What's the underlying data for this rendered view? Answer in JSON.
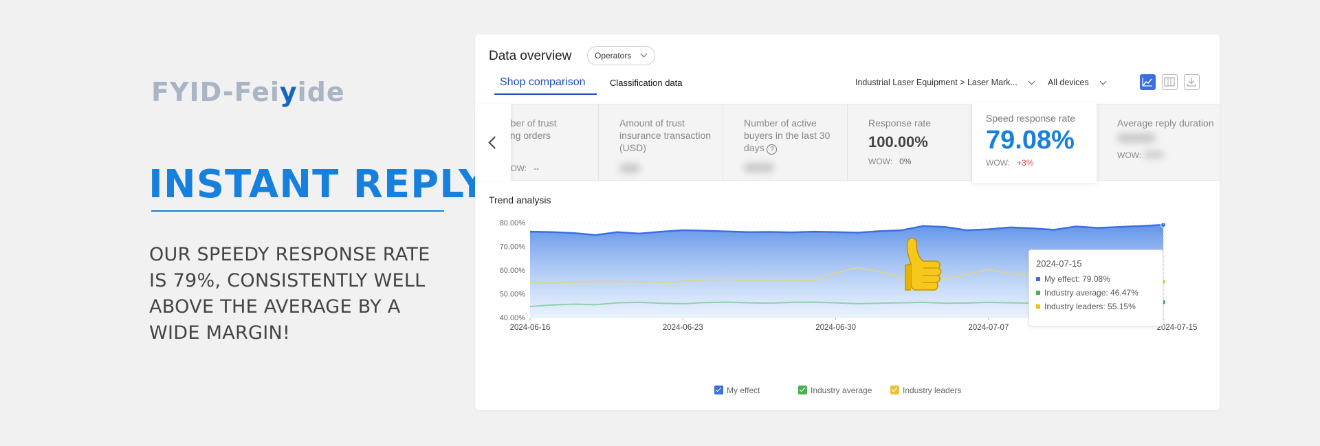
{
  "promo": {
    "logo_a": "FYID-Fei",
    "logo_b": "y",
    "logo_c": "ide",
    "headline": "INSTANT REPLY",
    "tagline": "OUR SPEEDY RESPONSE RATE IS 79%,  CONSISTENTLY WELL ABOVE THE AVERAGE BY A WIDE MARGIN!"
  },
  "dashboard": {
    "title": "Data overview",
    "operator_select": "Operators",
    "tabs": [
      {
        "label": "Shop comparison",
        "active": true
      },
      {
        "label": "Classification data",
        "active": false
      }
    ],
    "category_filter": "Industrial Laser Equipment > Laser Mark...",
    "device_filter": "All devices",
    "toolbar_icons": [
      "line-chart-icon",
      "columns-icon",
      "download-icon"
    ],
    "metrics": [
      {
        "label": "mber of trust\nding orders",
        "value": "",
        "wow_label": "WOW:",
        "wow": "--"
      },
      {
        "label": "Amount of trust insurance transaction (USD)",
        "value": "",
        "wow_label": "",
        "wow": ""
      },
      {
        "label": "Number of active buyers in the last 30 days",
        "value": "",
        "wow_label": "",
        "wow": ""
      },
      {
        "label": "Response rate",
        "value": "100.00%",
        "wow_label": "WOW:",
        "wow": "0%"
      },
      {
        "label": "Speed response rate",
        "value": "79.08%",
        "wow_label": "WOW:",
        "wow": "+3%"
      },
      {
        "label": "Average reply duration",
        "value": "",
        "wow_label": "WOW:",
        "wow": ""
      }
    ],
    "trend_title": "Trend analysis",
    "tooltip": {
      "date": "2024-07-15",
      "rows": [
        {
          "label": "My effect: 79.08%",
          "color": "#3b6fe0"
        },
        {
          "label": "Industry average: 46.47%",
          "color": "#4caf50"
        },
        {
          "label": "Industry leaders: 55.15%",
          "color": "#f2c200"
        }
      ]
    },
    "legend": [
      {
        "label": "My effect",
        "color": "#3b6fe0"
      },
      {
        "label": "Industry average",
        "color": "#4caf50"
      },
      {
        "label": "Industry leaders",
        "color": "#e8c23a"
      }
    ]
  },
  "chart_data": {
    "type": "area",
    "x": [
      "2024-06-16",
      "2024-06-17",
      "2024-06-18",
      "2024-06-19",
      "2024-06-20",
      "2024-06-21",
      "2024-06-22",
      "2024-06-23",
      "2024-06-24",
      "2024-06-25",
      "2024-06-26",
      "2024-06-27",
      "2024-06-28",
      "2024-06-29",
      "2024-06-30",
      "2024-07-01",
      "2024-07-02",
      "2024-07-03",
      "2024-07-04",
      "2024-07-05",
      "2024-07-06",
      "2024-07-07",
      "2024-07-08",
      "2024-07-09",
      "2024-07-10",
      "2024-07-11",
      "2024-07-12",
      "2024-07-13",
      "2024-07-14",
      "2024-07-15"
    ],
    "x_ticks": [
      "2024-06-16",
      "2024-06-23",
      "2024-06-30",
      "2024-07-07",
      "2024-07-15"
    ],
    "y_ticks": [
      "80.00%",
      "70.00%",
      "60.00%",
      "50.00%",
      "40.00%"
    ],
    "ylim": [
      40,
      80
    ],
    "series": [
      {
        "name": "My effect",
        "color": "#3b6fe0",
        "values": [
          76.2,
          76.0,
          75.6,
          74.8,
          76.0,
          75.4,
          76.2,
          76.8,
          76.6,
          76.3,
          76.0,
          76.1,
          75.9,
          76.2,
          76.0,
          75.8,
          76.4,
          76.8,
          78.6,
          78.2,
          76.8,
          77.2,
          78.0,
          77.6,
          77.0,
          78.4,
          77.8,
          78.2,
          78.6,
          79.08
        ]
      },
      {
        "name": "Industry average",
        "color": "#8fd1a8",
        "values": [
          44.6,
          45.3,
          45.6,
          45.4,
          46.2,
          46.4,
          46.0,
          45.8,
          46.3,
          46.5,
          46.2,
          46.0,
          46.4,
          46.5,
          46.2,
          45.8,
          46.0,
          46.2,
          46.4,
          46.0,
          46.1,
          46.4,
          46.2,
          46.0,
          46.5,
          46.8,
          47.2,
          47.4,
          47.2,
          46.47
        ]
      },
      {
        "name": "Industry leaders",
        "color": "#d8d49a",
        "values": [
          54.8,
          54.6,
          55.0,
          55.3,
          55.2,
          55.0,
          54.8,
          55.4,
          55.8,
          56.0,
          55.6,
          55.8,
          55.7,
          55.5,
          58.8,
          61.0,
          59.4,
          57.0,
          56.8,
          56.5,
          58.0,
          60.2,
          58.6,
          57.5,
          57.2,
          56.8,
          57.3,
          56.8,
          55.8,
          55.15
        ]
      }
    ]
  }
}
